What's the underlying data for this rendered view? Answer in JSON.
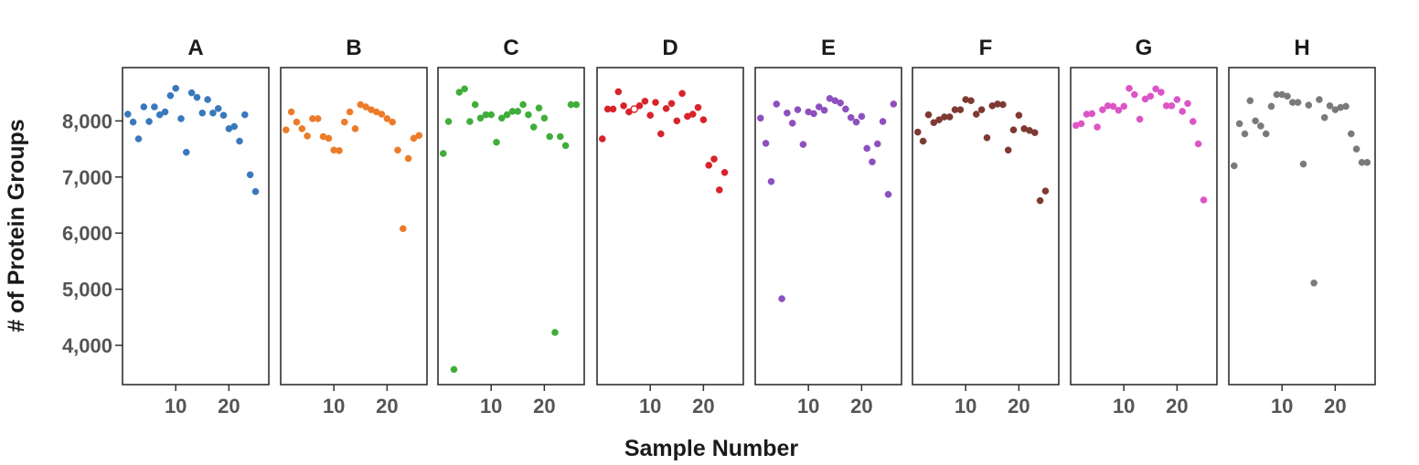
{
  "chart_data": {
    "type": "scatter",
    "xlabel": "Sample Number",
    "ylabel": "# of Protein Groups",
    "ylim": [
      3300,
      8950
    ],
    "xlim": [
      0,
      27.5
    ],
    "yticks": [
      4000,
      5000,
      6000,
      7000,
      8000
    ],
    "ytick_labels": [
      "4,000",
      "5,000",
      "6,000",
      "7,000",
      "8,000"
    ],
    "xticks": [
      10,
      20
    ],
    "xtick_labels": [
      "10",
      "20"
    ],
    "grid": false,
    "panels": [
      {
        "title": "A",
        "color": "#3a78bd",
        "x": [
          1,
          2,
          3,
          4,
          5,
          6,
          7,
          8,
          9,
          10,
          11,
          12,
          13,
          14,
          15,
          16,
          17,
          18,
          19,
          20,
          21,
          22,
          23,
          24,
          25
        ],
        "y": [
          8120,
          7980,
          7680,
          8250,
          7990,
          8250,
          8110,
          8160,
          8450,
          8580,
          8040,
          7440,
          8500,
          8420,
          8140,
          8380,
          8140,
          8220,
          8100,
          7860,
          7900,
          7640,
          8110,
          7040,
          6740
        ]
      },
      {
        "title": "B",
        "color": "#ec7b2a",
        "x": [
          1,
          2,
          3,
          4,
          5,
          6,
          7,
          8,
          9,
          10,
          11,
          12,
          13,
          14,
          15,
          16,
          17,
          18,
          19,
          20,
          21,
          22,
          23,
          24,
          25,
          26
        ],
        "y": [
          7840,
          8160,
          7980,
          7860,
          7730,
          8040,
          8040,
          7720,
          7690,
          7480,
          7470,
          7980,
          8160,
          7860,
          8290,
          8250,
          8200,
          8160,
          8120,
          8040,
          7980,
          7480,
          6080,
          7330,
          7690,
          7740
        ]
      },
      {
        "title": "C",
        "color": "#3fae3a",
        "x": [
          1,
          2,
          3,
          4,
          5,
          6,
          7,
          8,
          9,
          10,
          11,
          12,
          13,
          14,
          15,
          16,
          17,
          18,
          19,
          20,
          21,
          22,
          23,
          24,
          25,
          26
        ],
        "y": [
          7420,
          7990,
          3570,
          8510,
          8570,
          7990,
          8290,
          8050,
          8110,
          8110,
          7620,
          8050,
          8110,
          8170,
          8170,
          8290,
          8110,
          7890,
          8230,
          8050,
          7720,
          4230,
          7720,
          7560,
          8290,
          8290
        ]
      },
      {
        "title": "D",
        "color": "#d8232a",
        "x": [
          1,
          2,
          3,
          4,
          5,
          6,
          7,
          8,
          9,
          10,
          11,
          12,
          13,
          14,
          15,
          16,
          17,
          18,
          19,
          20,
          21,
          22,
          23,
          24
        ],
        "y": [
          7680,
          8210,
          8210,
          8520,
          8270,
          8160,
          8210,
          8270,
          8350,
          8100,
          8330,
          7770,
          8220,
          8310,
          8000,
          8490,
          8080,
          8120,
          8240,
          8020,
          7210,
          7320,
          6770,
          7080
        ],
        "hollow_index": 6
      },
      {
        "title": "E",
        "color": "#8e4fbf",
        "x": [
          1,
          2,
          3,
          4,
          5,
          6,
          7,
          8,
          9,
          10,
          11,
          12,
          13,
          14,
          15,
          16,
          17,
          18,
          19,
          20,
          21,
          22,
          23,
          24,
          25,
          26
        ],
        "y": [
          8050,
          7600,
          6920,
          8300,
          4830,
          8140,
          7960,
          8200,
          7580,
          8160,
          8130,
          8250,
          8190,
          8400,
          8360,
          8320,
          8210,
          8060,
          7980,
          8080,
          7510,
          7270,
          7590,
          7990,
          6690,
          8300
        ]
      },
      {
        "title": "F",
        "color": "#7d3a33",
        "x": [
          1,
          2,
          3,
          4,
          5,
          6,
          7,
          8,
          9,
          10,
          11,
          12,
          13,
          14,
          15,
          16,
          17,
          18,
          19,
          20,
          21,
          22,
          23,
          24,
          25
        ],
        "y": [
          7800,
          7640,
          8110,
          7970,
          8020,
          8070,
          8070,
          8200,
          8200,
          8380,
          8360,
          8120,
          8200,
          7700,
          8270,
          8300,
          8290,
          7480,
          7840,
          8100,
          7860,
          7830,
          7790,
          6580,
          6750
        ]
      },
      {
        "title": "G",
        "color": "#dc55c5",
        "x": [
          1,
          2,
          3,
          4,
          5,
          6,
          7,
          8,
          9,
          10,
          11,
          12,
          13,
          14,
          15,
          16,
          17,
          18,
          19,
          20,
          21,
          22,
          23,
          24,
          25
        ],
        "y": [
          7920,
          7950,
          8120,
          8130,
          7890,
          8200,
          8270,
          8260,
          8190,
          8260,
          8580,
          8470,
          8030,
          8390,
          8440,
          8570,
          8510,
          8270,
          8270,
          8380,
          8170,
          8310,
          7990,
          7590,
          6590
        ]
      },
      {
        "title": "H",
        "color": "#7a7a7a",
        "x": [
          1,
          2,
          3,
          4,
          5,
          6,
          7,
          8,
          9,
          10,
          11,
          12,
          13,
          14,
          15,
          16,
          17,
          18,
          19,
          20,
          21,
          22,
          23,
          24,
          25,
          26
        ],
        "y": [
          7200,
          7950,
          7770,
          8360,
          8000,
          7910,
          7770,
          8260,
          8470,
          8470,
          8440,
          8330,
          8330,
          7230,
          8280,
          5110,
          8380,
          8060,
          8270,
          8200,
          8240,
          8260,
          7770,
          7500,
          7260,
          7260
        ]
      }
    ]
  }
}
